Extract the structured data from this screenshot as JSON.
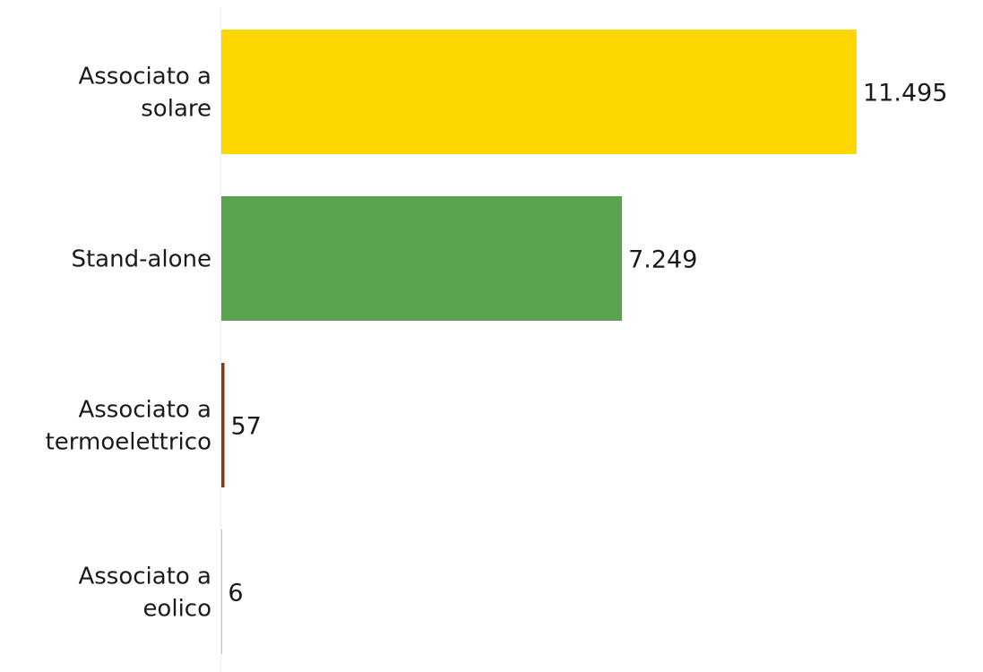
{
  "chart_data": {
    "type": "bar",
    "orientation": "horizontal",
    "categories": [
      [
        "Associato a",
        "solare"
      ],
      [
        "Stand-alone"
      ],
      [
        "Associato a",
        "termoelettrico"
      ],
      [
        "Associato a",
        "eolico"
      ]
    ],
    "values": [
      11495,
      7249,
      57,
      6
    ],
    "value_labels": [
      "11.495",
      "7.249",
      "57",
      "6"
    ],
    "colors": [
      "#fed700",
      "#5aa150",
      "#8b3a0f",
      "#1f77b4"
    ],
    "xlim": [
      0,
      11495
    ],
    "title": "",
    "xlabel": "",
    "ylabel": "",
    "grid": false,
    "legend": "none"
  }
}
